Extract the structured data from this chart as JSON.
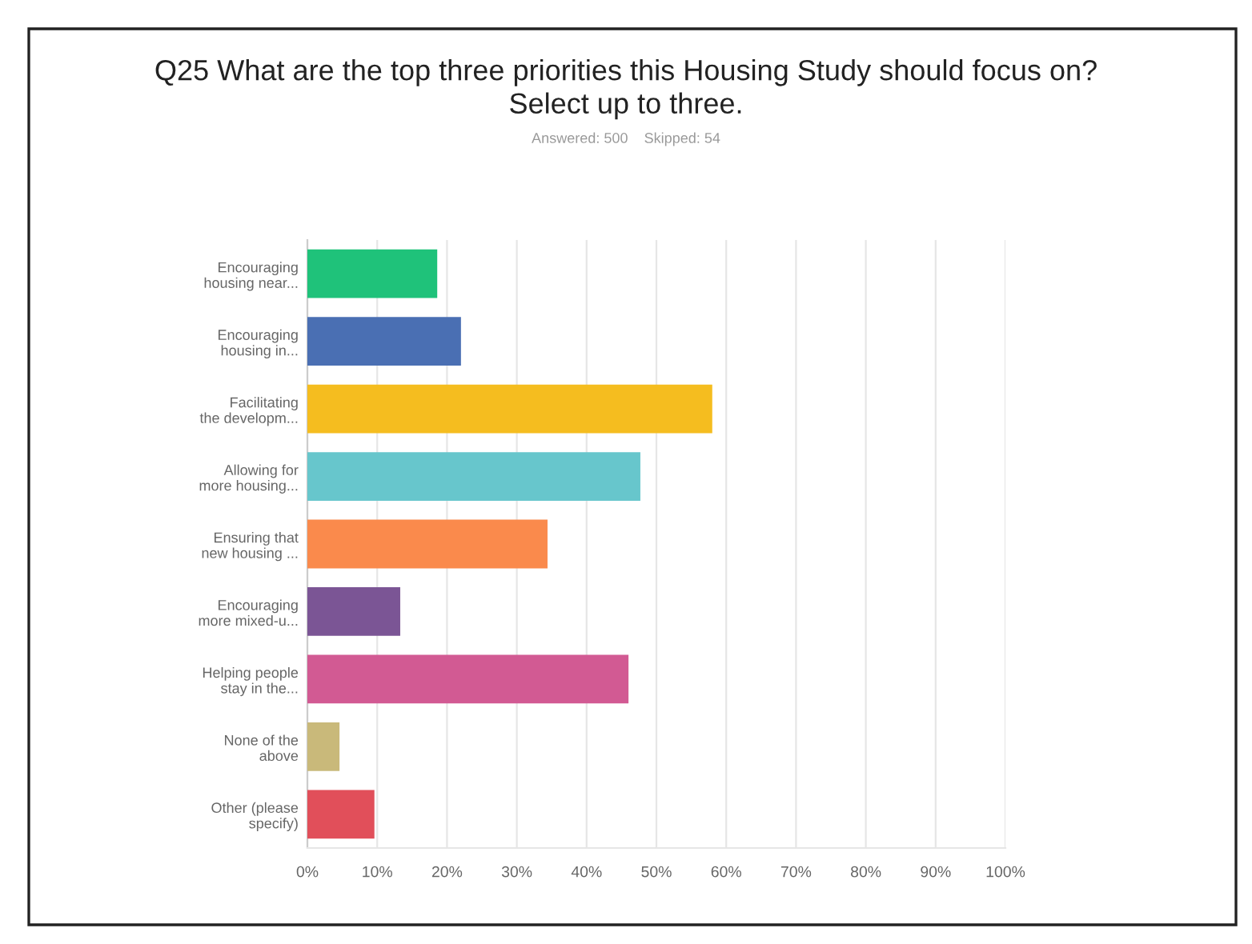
{
  "chart_data": {
    "type": "bar",
    "orientation": "horizontal",
    "title": "Q25 What are the top three priorities this Housing Study should focus on?\nSelect up to three.",
    "subtitle": "Answered: 500    Skipped: 54",
    "categories": [
      "Encouraging\nhousing near...",
      "Encouraging\nhousing in...",
      "Facilitating\nthe developm...",
      "Allowing for\nmore housing...",
      "Ensuring that\nnew housing ...",
      "Encouraging\nmore mixed-u...",
      "Helping people\nstay in the...",
      "None of the\nabove",
      "Other (please\nspecify)"
    ],
    "values": [
      18.6,
      22,
      58,
      47.7,
      34.4,
      13.3,
      46,
      4.6,
      9.6
    ],
    "colors": [
      "#1fc27a",
      "#4a6fb3",
      "#f5bd1f",
      "#67c6cc",
      "#fa8a4c",
      "#7b5595",
      "#d25a93",
      "#c9b97a",
      "#e14f5a"
    ],
    "xlim": [
      0,
      100
    ],
    "xticks": [
      {
        "value": 0,
        "label": "0%"
      },
      {
        "value": 10,
        "label": "10%"
      },
      {
        "value": 20,
        "label": "20%"
      },
      {
        "value": 30,
        "label": "30%"
      },
      {
        "value": 40,
        "label": "40%"
      },
      {
        "value": 50,
        "label": "50%"
      },
      {
        "value": 60,
        "label": "60%"
      },
      {
        "value": 70,
        "label": "70%"
      },
      {
        "value": 80,
        "label": "80%"
      },
      {
        "value": 90,
        "label": "90%"
      },
      {
        "value": 100,
        "label": "100%"
      }
    ],
    "grid": "x",
    "legend": false
  }
}
